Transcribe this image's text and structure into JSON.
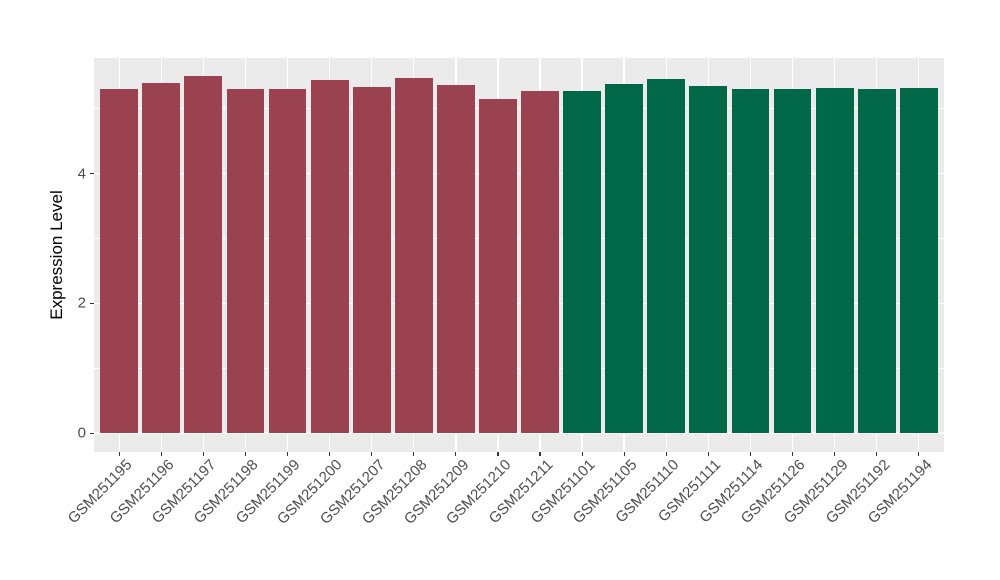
{
  "figure": {
    "background": "#FFFFFF",
    "panel_background": "#EBEBEB",
    "grid_color": "#FFFFFF",
    "tick_color": "#333333",
    "axis_text_color": "#4D4D4D",
    "axis_title_color": "#000000"
  },
  "chart_data": {
    "type": "bar",
    "title": "",
    "xlabel": "",
    "ylabel": "Expression Level",
    "categories": [
      "GSM251195",
      "GSM251196",
      "GSM251197",
      "GSM251198",
      "GSM251199",
      "GSM251200",
      "GSM251207",
      "GSM251208",
      "GSM251209",
      "GSM251210",
      "GSM251211",
      "GSM251101",
      "GSM251105",
      "GSM251110",
      "GSM251111",
      "GSM251114",
      "GSM251126",
      "GSM251129",
      "GSM251192",
      "GSM251194"
    ],
    "values": [
      5.3,
      5.39,
      5.51,
      5.3,
      5.31,
      5.44,
      5.34,
      5.47,
      5.37,
      5.15,
      5.27,
      5.27,
      5.38,
      5.45,
      5.35,
      5.31,
      5.3,
      5.32,
      5.31,
      5.32
    ],
    "bar_groups": [
      "group1",
      "group1",
      "group1",
      "group1",
      "group1",
      "group1",
      "group1",
      "group1",
      "group1",
      "group1",
      "group1",
      "group2",
      "group2",
      "group2",
      "group2",
      "group2",
      "group2",
      "group2",
      "group2",
      "group2"
    ],
    "group_colors": {
      "group1": "#9B4251",
      "group2": "#006847"
    },
    "yticks": [
      0,
      2,
      4
    ],
    "ytick_labels": [
      "0",
      "2",
      "4"
    ],
    "minor_yticks": [
      1,
      3,
      5
    ],
    "ylim": [
      -0.29,
      5.78
    ],
    "bar_width_fraction": 0.9,
    "x_tick_label_angle": -45,
    "grid": "major+minor horizontal, major vertical per category",
    "legend": "none"
  }
}
